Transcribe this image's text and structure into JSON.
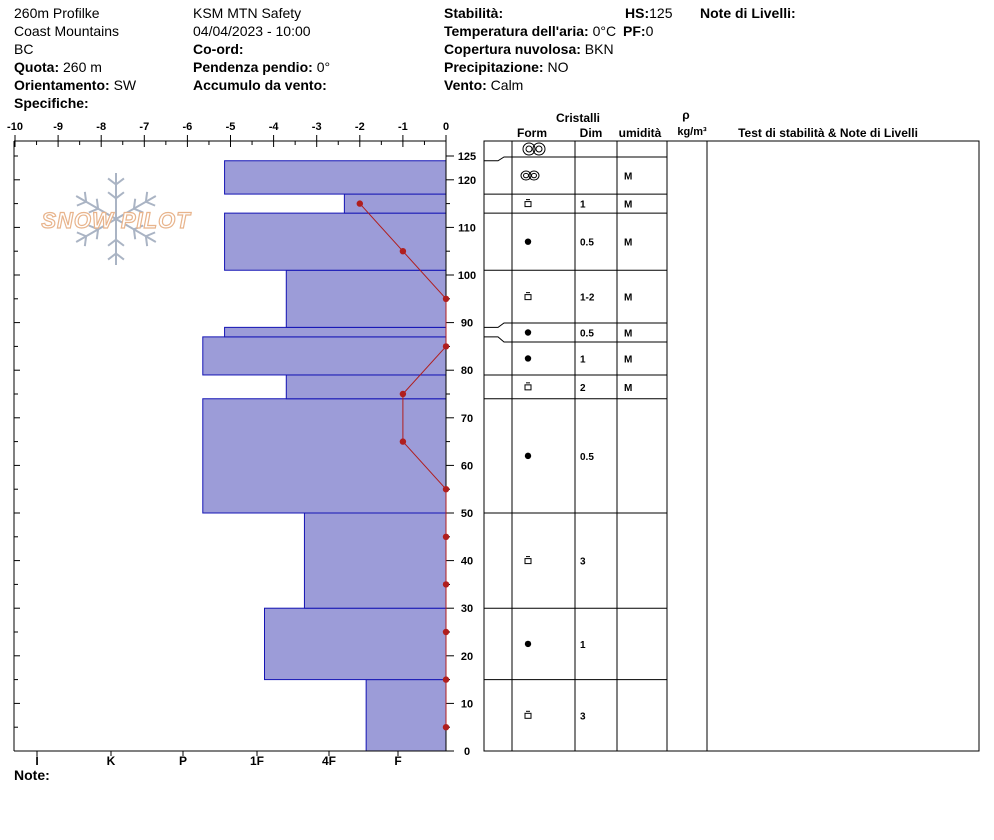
{
  "header": {
    "col1": {
      "profile_name": "260m Profilke",
      "range": "Coast Mountains",
      "province": "BC",
      "elevation_label": "Quota:",
      "elevation_value": "260 m",
      "aspect_label": "Orientamento:",
      "aspect_value": "SW",
      "specifics_label": "Specifiche:"
    },
    "col2": {
      "organization": "KSM MTN Safety",
      "datetime": "04/04/2023 - 10:00",
      "coord_label": "Co-ord:",
      "slope_label": "Pendenza pendio:",
      "slope_value": "0°",
      "wind_loading_label": "Accumulo da vento:"
    },
    "col3": {
      "stability_label": "Stabilità:",
      "air_temp_label": "Temperatura dell'aria:",
      "air_temp_value": "0°C",
      "cloud_label": "Copertura nuvolosa:",
      "cloud_value": "BKN",
      "precip_label": "Precipitazione:",
      "precip_value": "NO",
      "wind_label": "Vento:",
      "wind_value": "Calm"
    },
    "col4": {
      "hs_label": "HS:",
      "hs_value": "125",
      "pf_label": "PF:",
      "pf_value": "0"
    },
    "layer_notes_label": "Note di Livelli:"
  },
  "logo_text": "SNOW PILOT",
  "footer": {
    "notes_label": "Note:"
  },
  "table_headers": {
    "crystals": "Cristalli",
    "form": "Form",
    "size": "Dim",
    "moisture": "umidità",
    "rho": "ρ",
    "density_unit": "kg/m³",
    "stability_notes": "Test di stabilità & Note di Livelli"
  },
  "chart_data": {
    "type": "snow_profile",
    "temperature_axis": {
      "ticks": [
        "-10",
        "-9",
        "-8",
        "-7",
        "-6",
        "-5",
        "-4",
        "-3",
        "-2",
        "-1",
        "0"
      ],
      "range": [
        -10,
        0
      ]
    },
    "depth_axis": {
      "ticks": [
        "0",
        "10",
        "20",
        "30",
        "40",
        "50",
        "60",
        "70",
        "80",
        "90",
        "100",
        "110",
        "120",
        "125"
      ],
      "range": [
        0,
        125
      ]
    },
    "hardness_axis": {
      "ticks": [
        "I",
        "K",
        "P",
        "1F",
        "4F",
        "F"
      ]
    },
    "hardness_layers": [
      {
        "bottom": 0,
        "top": 15,
        "hardness": 2.2
      },
      {
        "bottom": 15,
        "top": 30,
        "hardness": 5.0
      },
      {
        "bottom": 30,
        "top": 50,
        "hardness": 3.9
      },
      {
        "bottom": 50,
        "top": 74,
        "hardness": 6.7
      },
      {
        "bottom": 74,
        "top": 79,
        "hardness": 4.4
      },
      {
        "bottom": 79,
        "top": 87,
        "hardness": 6.7
      },
      {
        "bottom": 87,
        "top": 89,
        "hardness": 6.1
      },
      {
        "bottom": 89,
        "top": 101,
        "hardness": 4.4
      },
      {
        "bottom": 101,
        "top": 113,
        "hardness": 6.1
      },
      {
        "bottom": 113,
        "top": 117,
        "hardness": 2.8
      },
      {
        "bottom": 117,
        "top": 124,
        "hardness": 6.1
      }
    ],
    "temperature_profile": [
      {
        "depth": 5,
        "temp": 0
      },
      {
        "depth": 15,
        "temp": 0
      },
      {
        "depth": 25,
        "temp": 0
      },
      {
        "depth": 35,
        "temp": 0
      },
      {
        "depth": 45,
        "temp": 0
      },
      {
        "depth": 55,
        "temp": 0
      },
      {
        "depth": 65,
        "temp": -1
      },
      {
        "depth": 75,
        "temp": -1
      },
      {
        "depth": 85,
        "temp": 0
      },
      {
        "depth": 95,
        "temp": 0
      },
      {
        "depth": 105,
        "temp": -1
      },
      {
        "depth": 115,
        "temp": -2
      }
    ],
    "layers_table": [
      {
        "bottom": 117,
        "top": 124,
        "form": "double-ring-icon",
        "size": "",
        "moisture": "M"
      },
      {
        "bottom": 113,
        "top": 117,
        "form": "faceted-icon",
        "size": "1",
        "moisture": "M"
      },
      {
        "bottom": 101,
        "top": 113,
        "form": "round-dot-icon",
        "size": "0.5",
        "moisture": "M"
      },
      {
        "bottom": 89,
        "top": 101,
        "form": "faceted-icon",
        "size": "1-2",
        "moisture": "M"
      },
      {
        "bottom": 87,
        "top": 89,
        "form": "round-dot-icon",
        "size": "0.5",
        "moisture": "M"
      },
      {
        "bottom": 79,
        "top": 87,
        "form": "round-dot-icon",
        "size": "1",
        "moisture": "M"
      },
      {
        "bottom": 74,
        "top": 79,
        "form": "faceted-icon",
        "size": "2",
        "moisture": "M"
      },
      {
        "bottom": 50,
        "top": 74,
        "form": "round-dot-icon",
        "size": "0.5",
        "moisture": ""
      },
      {
        "bottom": 30,
        "top": 50,
        "form": "faceted-icon",
        "size": "3",
        "moisture": ""
      },
      {
        "bottom": 15,
        "top": 30,
        "form": "round-dot-icon",
        "size": "1",
        "moisture": ""
      },
      {
        "bottom": 0,
        "top": 15,
        "form": "faceted-icon",
        "size": "3",
        "moisture": ""
      }
    ],
    "surface_form": "double-ring-icon",
    "colors": {
      "layer_fill": "#9c9cd8",
      "layer_stroke": "#1414b4",
      "temperature": "#b01e1e"
    }
  }
}
